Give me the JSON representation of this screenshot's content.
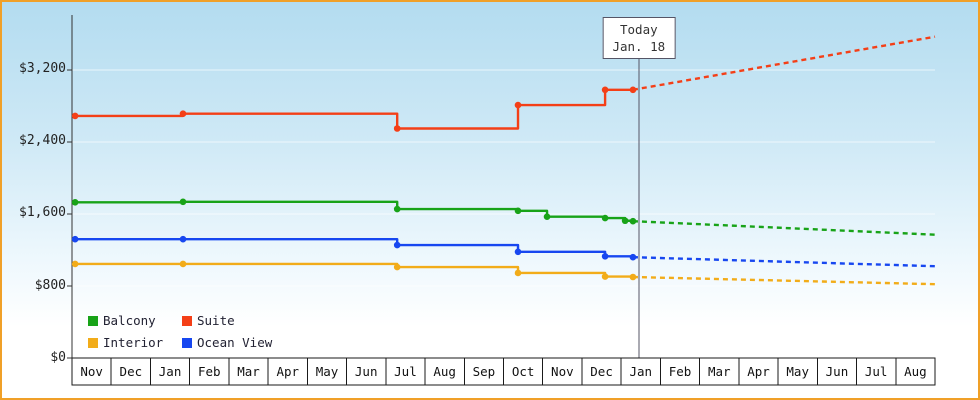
{
  "window": {
    "border_color": "#f0a028"
  },
  "chart_data": {
    "type": "line",
    "title": "",
    "values_unit": "USD",
    "y_axis": {
      "tick_labels": [
        "$3,200",
        "$2,400",
        "$1,600",
        "$800",
        "$0"
      ],
      "tick_values": [
        3200,
        2400,
        1600,
        800,
        0
      ],
      "ylim": [
        0,
        3800
      ],
      "grid": true
    },
    "x_axis": {
      "unit": "month",
      "months": [
        "Nov",
        "Dec",
        "Jan",
        "Feb",
        "Mar",
        "Apr",
        "May",
        "Jun",
        "Jul",
        "Aug",
        "Sep",
        "Oct",
        "Nov",
        "Dec",
        "Jan",
        "Feb",
        "Mar",
        "Apr",
        "May",
        "Jun",
        "Jul",
        "Aug"
      ]
    },
    "today_marker": {
      "x": 14.45,
      "label_line1": "Today",
      "label_line2": "Jan. 18"
    },
    "legend": {
      "position": "bottom-left",
      "items": [
        {
          "label": "Balcony",
          "color": "#18a318"
        },
        {
          "label": "Suite",
          "color": "#f43f17"
        },
        {
          "label": "Interior",
          "color": "#f2ac19"
        },
        {
          "label": "Ocean View",
          "color": "#1747f0"
        }
      ]
    },
    "series": [
      {
        "name": "Interior",
        "color": "#f2ac19",
        "points": [
          [
            0.08,
            1045
          ],
          [
            2.83,
            1045
          ],
          [
            8.29,
            1010
          ],
          [
            11.37,
            945
          ],
          [
            13.59,
            905
          ],
          [
            14.3,
            900
          ]
        ],
        "forecast_end": [
          22,
          820
        ]
      },
      {
        "name": "Ocean View",
        "color": "#1747f0",
        "points": [
          [
            0.08,
            1320
          ],
          [
            2.83,
            1320
          ],
          [
            8.29,
            1255
          ],
          [
            11.37,
            1180
          ],
          [
            13.59,
            1130
          ],
          [
            14.3,
            1120
          ]
        ],
        "forecast_end": [
          22,
          1020
        ]
      },
      {
        "name": "Balcony",
        "color": "#18a318",
        "points": [
          [
            0.08,
            1730
          ],
          [
            2.83,
            1735
          ],
          [
            8.29,
            1655
          ],
          [
            11.37,
            1635
          ],
          [
            12.11,
            1570
          ],
          [
            13.59,
            1555
          ],
          [
            14.1,
            1525
          ],
          [
            14.3,
            1520
          ]
        ],
        "forecast_end": [
          22,
          1370
        ]
      },
      {
        "name": "Suite",
        "color": "#f43f17",
        "points": [
          [
            0.08,
            2690
          ],
          [
            2.83,
            2715
          ],
          [
            8.29,
            2550
          ],
          [
            11.37,
            2810
          ],
          [
            13.59,
            2980
          ],
          [
            14.3,
            2980
          ]
        ],
        "forecast_end": [
          22,
          3570
        ]
      }
    ]
  }
}
